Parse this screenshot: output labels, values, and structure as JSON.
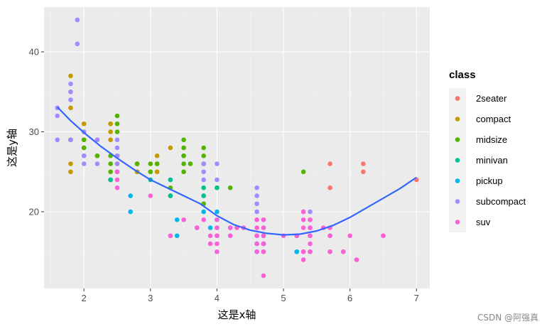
{
  "watermark": "CSDN @阿强真",
  "chart_data": {
    "type": "scatter",
    "xlabel": "这是x轴",
    "ylabel": "这是y轴",
    "xlim": [
      1.4,
      7.2
    ],
    "ylim": [
      10.4,
      45.6
    ],
    "x_ticks": [
      2,
      3,
      4,
      5,
      6,
      7
    ],
    "y_ticks": [
      20,
      30,
      40
    ],
    "grid": true,
    "background": "#ebebeb",
    "legend": {
      "title": "class",
      "position": "right"
    },
    "colors": {
      "2seater": "#F8766D",
      "compact": "#C49A00",
      "midsize": "#53B400",
      "minivan": "#00C094",
      "pickup": "#00B6EB",
      "subcompact": "#A58AFF",
      "suv": "#FB61D7",
      "smooth": "#3366FF"
    },
    "series": [
      {
        "name": "2seater",
        "points": [
          [
            5.7,
            26
          ],
          [
            5.7,
            23
          ],
          [
            6.2,
            26
          ],
          [
            6.2,
            25
          ],
          [
            7.0,
            24
          ]
        ]
      },
      {
        "name": "compact",
        "points": [
          [
            1.8,
            29
          ],
          [
            1.8,
            29
          ],
          [
            2.0,
            31
          ],
          [
            2.0,
            30
          ],
          [
            2.8,
            26
          ],
          [
            2.8,
            26
          ],
          [
            3.1,
            27
          ],
          [
            1.8,
            26
          ],
          [
            1.8,
            25
          ],
          [
            2.0,
            28
          ],
          [
            2.0,
            27
          ],
          [
            2.8,
            25
          ],
          [
            2.8,
            25
          ],
          [
            3.1,
            25
          ],
          [
            2.2,
            27
          ],
          [
            2.2,
            29
          ],
          [
            2.4,
            31
          ],
          [
            2.4,
            31
          ],
          [
            3.0,
            26
          ],
          [
            3.3,
            28
          ],
          [
            1.8,
            37
          ],
          [
            1.8,
            35
          ],
          [
            2.0,
            29
          ],
          [
            2.5,
            27
          ],
          [
            2.5,
            26
          ],
          [
            1.8,
            33
          ],
          [
            2.4,
            30
          ],
          [
            2.4,
            29
          ]
        ]
      },
      {
        "name": "midsize",
        "points": [
          [
            2.4,
            27
          ],
          [
            3.1,
            26
          ],
          [
            3.5,
            29
          ],
          [
            3.6,
            26
          ],
          [
            2.5,
            31
          ],
          [
            2.5,
            32
          ],
          [
            2.5,
            27
          ],
          [
            3.0,
            26
          ],
          [
            3.0,
            25
          ],
          [
            3.5,
            25
          ],
          [
            3.5,
            27
          ],
          [
            3.8,
            28
          ],
          [
            3.8,
            26
          ],
          [
            2.4,
            26
          ],
          [
            2.4,
            25
          ],
          [
            3.3,
            22
          ],
          [
            3.3,
            23
          ],
          [
            3.8,
            21
          ],
          [
            4.0,
            23
          ],
          [
            2.0,
            29
          ],
          [
            1.8,
            29
          ],
          [
            2.0,
            28
          ],
          [
            2.8,
            26
          ],
          [
            3.1,
            26
          ],
          [
            3.5,
            27
          ],
          [
            2.5,
            30
          ],
          [
            3.0,
            25
          ],
          [
            3.5,
            26
          ],
          [
            4.2,
            23
          ],
          [
            5.3,
            25
          ],
          [
            3.8,
            27
          ],
          [
            2.2,
            27
          ],
          [
            2.4,
            24
          ],
          [
            3.5,
            28
          ]
        ]
      },
      {
        "name": "minivan",
        "points": [
          [
            2.4,
            24
          ],
          [
            3.0,
            24
          ],
          [
            3.3,
            22
          ],
          [
            3.3,
            22
          ],
          [
            3.3,
            24
          ],
          [
            3.8,
            23
          ],
          [
            3.8,
            22
          ],
          [
            4.0,
            23
          ],
          [
            3.3,
            24
          ],
          [
            3.8,
            22
          ],
          [
            2.4,
            24
          ]
        ]
      },
      {
        "name": "pickup",
        "points": [
          [
            2.7,
            20
          ],
          [
            2.7,
            22
          ],
          [
            3.4,
            19
          ],
          [
            3.4,
            17
          ],
          [
            4.0,
            20
          ],
          [
            4.0,
            17
          ],
          [
            4.7,
            17
          ],
          [
            4.7,
            16
          ],
          [
            4.7,
            16
          ],
          [
            5.2,
            15
          ],
          [
            5.2,
            17
          ],
          [
            5.9,
            15
          ],
          [
            4.6,
            16
          ],
          [
            5.4,
            17
          ],
          [
            5.4,
            15
          ],
          [
            3.7,
            18
          ],
          [
            4.0,
            19
          ],
          [
            4.2,
            17
          ],
          [
            4.6,
            17
          ],
          [
            4.7,
            16
          ],
          [
            5.7,
            17
          ],
          [
            3.9,
            18
          ],
          [
            4.7,
            15
          ],
          [
            5.2,
            15
          ],
          [
            5.4,
            15
          ],
          [
            4.6,
            15
          ],
          [
            3.8,
            20
          ],
          [
            4.0,
            18
          ]
        ]
      },
      {
        "name": "subcompact",
        "points": [
          [
            2.0,
            27
          ],
          [
            1.8,
            29
          ],
          [
            1.8,
            29
          ],
          [
            2.0,
            26
          ],
          [
            2.0,
            27
          ],
          [
            2.5,
            27
          ],
          [
            2.5,
            28
          ],
          [
            2.2,
            29
          ],
          [
            2.2,
            26
          ],
          [
            1.6,
            33
          ],
          [
            1.6,
            32
          ],
          [
            1.8,
            36
          ],
          [
            1.9,
            44
          ],
          [
            1.9,
            41
          ],
          [
            2.0,
            30
          ],
          [
            1.6,
            29
          ],
          [
            1.8,
            34
          ],
          [
            2.5,
            29
          ],
          [
            3.8,
            26
          ],
          [
            4.0,
            26
          ],
          [
            4.6,
            23
          ],
          [
            4.6,
            22
          ],
          [
            4.6,
            21
          ],
          [
            5.4,
            20
          ],
          [
            2.5,
            25
          ],
          [
            3.8,
            25
          ],
          [
            4.0,
            24
          ],
          [
            1.8,
            35
          ],
          [
            2.0,
            30
          ],
          [
            2.5,
            27
          ],
          [
            3.8,
            24
          ],
          [
            2.5,
            26
          ],
          [
            5.4,
            19
          ],
          [
            4.6,
            20
          ],
          [
            2.5,
            25
          ]
        ]
      },
      {
        "name": "suv",
        "points": [
          [
            5.3,
            20
          ],
          [
            5.3,
            15
          ],
          [
            5.3,
            20
          ],
          [
            5.7,
            17
          ],
          [
            6.0,
            17
          ],
          [
            5.3,
            15
          ],
          [
            5.7,
            15
          ],
          [
            6.5,
            17
          ],
          [
            6.1,
            14
          ],
          [
            4.0,
            15
          ],
          [
            4.7,
            15
          ],
          [
            4.7,
            12
          ],
          [
            5.7,
            18
          ],
          [
            2.5,
            23
          ],
          [
            2.5,
            24
          ],
          [
            3.3,
            17
          ],
          [
            4.0,
            17
          ],
          [
            4.6,
            17
          ],
          [
            4.6,
            16
          ],
          [
            4.2,
            18
          ],
          [
            4.4,
            18
          ],
          [
            4.6,
            19
          ],
          [
            5.4,
            18
          ],
          [
            3.0,
            22
          ],
          [
            3.7,
            18
          ],
          [
            4.0,
            19
          ],
          [
            5.0,
            17
          ],
          [
            5.6,
            18
          ],
          [
            4.7,
            19
          ],
          [
            4.7,
            17
          ],
          [
            4.7,
            15
          ],
          [
            5.4,
            19
          ],
          [
            5.4,
            15
          ],
          [
            3.9,
            17
          ],
          [
            4.7,
            16
          ],
          [
            4.0,
            18
          ],
          [
            4.7,
            19
          ],
          [
            5.3,
            18
          ],
          [
            5.4,
            17
          ],
          [
            5.9,
            15
          ],
          [
            4.6,
            15
          ],
          [
            5.4,
            16
          ],
          [
            3.3,
            17
          ],
          [
            4.3,
            18
          ],
          [
            4.6,
            18
          ],
          [
            4.7,
            18
          ],
          [
            5.2,
            17
          ],
          [
            5.4,
            18
          ],
          [
            6.5,
            17
          ],
          [
            4.6,
            17
          ],
          [
            5.3,
            14
          ],
          [
            5.7,
            15
          ],
          [
            2.5,
            25
          ],
          [
            3.8,
            19
          ],
          [
            4.2,
            18
          ],
          [
            4.0,
            16
          ],
          [
            5.3,
            19
          ],
          [
            3.5,
            19
          ],
          [
            4.0,
            17
          ],
          [
            3.9,
            16
          ],
          [
            4.2,
            17
          ],
          [
            4.7,
            16
          ]
        ]
      }
    ],
    "smooth": {
      "name": "loess",
      "x": [
        1.6,
        1.8,
        2.0,
        2.25,
        2.5,
        2.75,
        3.0,
        3.25,
        3.5,
        3.75,
        4.0,
        4.25,
        4.5,
        4.75,
        5.0,
        5.25,
        5.5,
        5.75,
        6.0,
        6.25,
        6.5,
        6.75,
        7.0
      ],
      "y": [
        33.1,
        31.4,
        29.9,
        28.2,
        26.7,
        25.3,
        24.0,
        23.0,
        22.0,
        21.0,
        19.5,
        18.4,
        17.7,
        17.3,
        17.1,
        17.2,
        17.6,
        18.3,
        19.3,
        20.5,
        21.7,
        22.9,
        24.3
      ]
    }
  }
}
